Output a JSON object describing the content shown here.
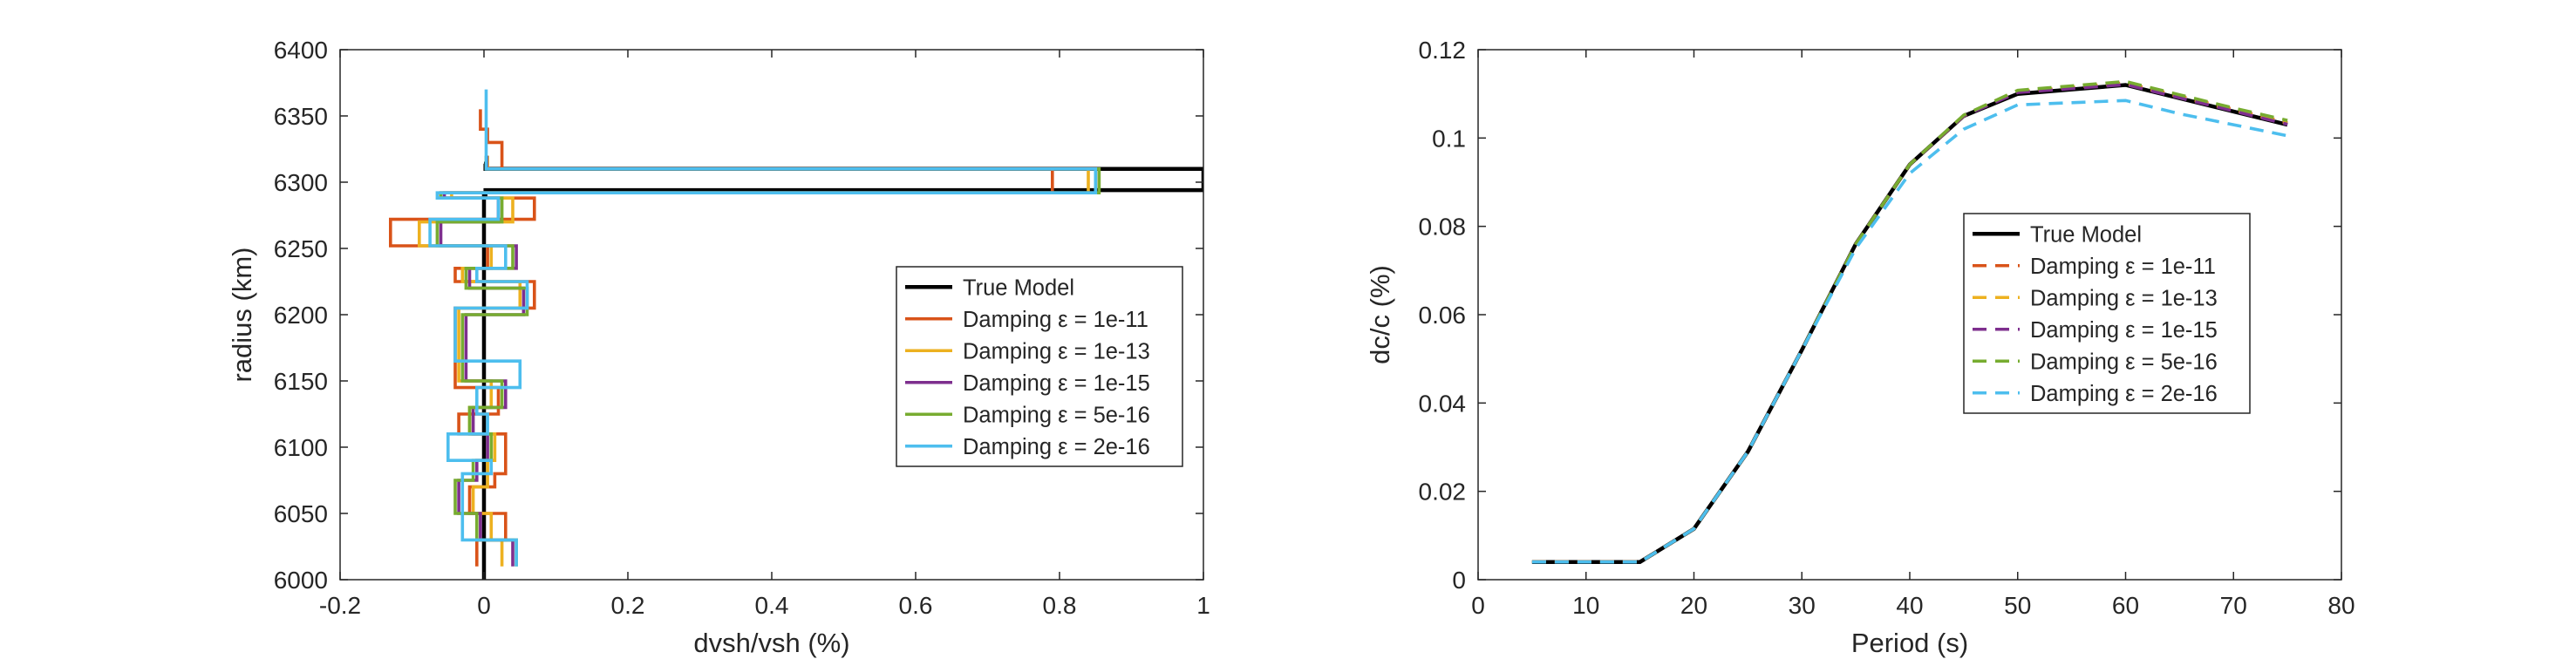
{
  "chart_data": [
    {
      "type": "line",
      "xlabel": "dvsh/vsh (%)",
      "ylabel": "radius (km)",
      "xlim": [
        -0.2,
        1
      ],
      "ylim": [
        6000,
        6400
      ],
      "xticks": [
        -0.2,
        0,
        0.2,
        0.4,
        0.6,
        0.8,
        1
      ],
      "xtick_labels": [
        "-0.2",
        "0",
        "0.2",
        "0.4",
        "0.6",
        "0.8",
        "1"
      ],
      "yticks": [
        6000,
        6050,
        6100,
        6150,
        6200,
        6250,
        6300,
        6350,
        6400
      ],
      "ytick_labels": [
        "6000",
        "6050",
        "6100",
        "6150",
        "6200",
        "6250",
        "6300",
        "6350",
        "6400"
      ],
      "grid": false,
      "legend_position": "right",
      "series": [
        {
          "name": "True Model",
          "color": "#000000",
          "dash": "solid",
          "x": [
            0,
            0,
            0.002,
            0.002,
            1.0,
            1.0,
            0.002,
            0.002,
            0
          ],
          "y": [
            6000,
            6290,
            6290,
            6294,
            6294,
            6310,
            6310,
            6314,
            6314
          ]
        },
        {
          "name": "Damping ε = 1e-11",
          "color": "#d95319",
          "dash": "solid",
          "x": [
            -0.01,
            -0.01,
            0.03,
            0.03,
            -0.02,
            -0.02,
            0.015,
            0.015,
            0.03,
            0.03,
            -0.035,
            -0.035,
            0.02,
            0.02,
            -0.04,
            -0.04,
            0.07,
            0.07,
            -0.04,
            -0.04,
            0.005,
            0.005,
            -0.13,
            -0.13,
            0.07,
            0.07,
            -0.06,
            -0.06,
            0.79,
            0.79,
            0.025,
            0.025,
            0.005,
            0.005,
            -0.005,
            -0.005
          ],
          "y": [
            6010,
            6030,
            6030,
            6050,
            6050,
            6070,
            6070,
            6080,
            6080,
            6110,
            6110,
            6125,
            6125,
            6145,
            6145,
            6205,
            6205,
            6225,
            6225,
            6235,
            6235,
            6252,
            6252,
            6272,
            6272,
            6288,
            6288,
            6292,
            6292,
            6310,
            6310,
            6330,
            6330,
            6340,
            6340,
            6355
          ]
        },
        {
          "name": "Damping ε = 1e-13",
          "color": "#edb120",
          "dash": "solid",
          "x": [
            0.025,
            0.025,
            0.01,
            0.01,
            -0.015,
            -0.015,
            0.005,
            0.005,
            0.015,
            0.015,
            -0.02,
            -0.02,
            0.01,
            0.01,
            -0.035,
            -0.035,
            0.05,
            0.05,
            -0.03,
            -0.03,
            0.01,
            0.01,
            -0.09,
            -0.09,
            0.04,
            0.04,
            -0.045,
            -0.045,
            0.84,
            0.84,
            0.005,
            0.005
          ],
          "y": [
            6010,
            6030,
            6030,
            6050,
            6050,
            6070,
            6070,
            6090,
            6090,
            6110,
            6110,
            6130,
            6130,
            6150,
            6150,
            6205,
            6205,
            6225,
            6225,
            6235,
            6235,
            6252,
            6252,
            6270,
            6270,
            6288,
            6288,
            6292,
            6292,
            6310,
            6310,
            6320
          ]
        },
        {
          "name": "Damping ε = 1e-15",
          "color": "#7e2f8e",
          "dash": "solid",
          "x": [
            0.04,
            0.04,
            -0.005,
            -0.005,
            -0.035,
            -0.035,
            -0.01,
            -0.01,
            0.005,
            0.005,
            -0.015,
            -0.015,
            0.03,
            0.03,
            -0.025,
            -0.025,
            0.055,
            0.055,
            -0.02,
            -0.02,
            0.045,
            0.045,
            -0.06,
            -0.06,
            0.02,
            0.02,
            -0.055,
            -0.055,
            0.85,
            0.85,
            0.004,
            0.004
          ],
          "y": [
            6010,
            6030,
            6030,
            6050,
            6050,
            6075,
            6075,
            6090,
            6090,
            6110,
            6110,
            6130,
            6130,
            6150,
            6150,
            6200,
            6200,
            6220,
            6220,
            6235,
            6235,
            6252,
            6252,
            6270,
            6270,
            6288,
            6288,
            6292,
            6292,
            6310,
            6310,
            6320
          ]
        },
        {
          "name": "Damping ε = 5e-16",
          "color": "#77ac30",
          "dash": "solid",
          "x": [
            0.045,
            0.045,
            -0.01,
            -0.01,
            -0.04,
            -0.04,
            -0.015,
            -0.015,
            0.01,
            0.01,
            -0.02,
            -0.02,
            0.025,
            0.025,
            -0.03,
            -0.03,
            0.06,
            0.06,
            -0.025,
            -0.025,
            0.04,
            0.04,
            -0.065,
            -0.065,
            0.025,
            0.025,
            -0.06,
            -0.06,
            0.855,
            0.855,
            0.003,
            0.003
          ],
          "y": [
            6010,
            6030,
            6030,
            6050,
            6050,
            6075,
            6075,
            6090,
            6090,
            6110,
            6110,
            6130,
            6130,
            6150,
            6150,
            6200,
            6200,
            6220,
            6220,
            6235,
            6235,
            6252,
            6252,
            6270,
            6270,
            6288,
            6288,
            6292,
            6292,
            6310,
            6310,
            6320
          ]
        },
        {
          "name": "Damping ε = 2e-16",
          "color": "#4dbeee",
          "dash": "solid",
          "x": [
            0.045,
            0.045,
            -0.03,
            -0.03,
            0.01,
            0.01,
            -0.05,
            -0.05,
            0.005,
            0.005,
            -0.01,
            -0.01,
            0.05,
            0.05,
            -0.04,
            -0.04,
            0.06,
            0.06,
            -0.01,
            -0.01,
            0.03,
            0.03,
            -0.075,
            -0.075,
            0.02,
            0.02,
            -0.065,
            -0.065,
            0.85,
            0.85,
            0.003,
            0.003
          ],
          "y": [
            6010,
            6030,
            6030,
            6080,
            6080,
            6090,
            6090,
            6110,
            6110,
            6125,
            6125,
            6145,
            6145,
            6165,
            6165,
            6205,
            6205,
            6225,
            6225,
            6235,
            6235,
            6252,
            6252,
            6272,
            6272,
            6288,
            6288,
            6292,
            6292,
            6310,
            6310,
            6370
          ]
        }
      ]
    },
    {
      "type": "line",
      "xlabel": "Period (s)",
      "ylabel": "dc/c (%)",
      "xlim": [
        0,
        80
      ],
      "ylim": [
        0,
        0.12
      ],
      "xticks": [
        0,
        10,
        20,
        30,
        40,
        50,
        60,
        70,
        80
      ],
      "xtick_labels": [
        "0",
        "10",
        "20",
        "30",
        "40",
        "50",
        "60",
        "70",
        "80"
      ],
      "yticks": [
        0,
        0.02,
        0.04,
        0.06,
        0.08,
        0.1,
        0.12
      ],
      "ytick_labels": [
        "0",
        "0.02",
        "0.04",
        "0.06",
        "0.08",
        "0.1",
        "0.12"
      ],
      "grid": false,
      "legend_position": "center-right",
      "x": [
        5,
        10,
        15,
        20,
        25,
        30,
        35,
        40,
        45,
        50,
        55,
        60,
        65,
        70,
        75
      ],
      "series": [
        {
          "name": "True Model",
          "color": "#000000",
          "dash": "solid",
          "values": [
            0.004,
            0.004,
            0.004,
            0.0115,
            0.029,
            0.052,
            0.076,
            0.094,
            0.105,
            0.11,
            0.111,
            0.112,
            0.109,
            0.106,
            0.103
          ]
        },
        {
          "name": "Damping ε = 1e-11",
          "color": "#d95319",
          "dash": "dashed",
          "values": [
            0.004,
            0.004,
            0.004,
            0.0115,
            0.029,
            0.052,
            0.076,
            0.094,
            0.105,
            0.1105,
            0.1115,
            0.1125,
            0.1095,
            0.1065,
            0.1035
          ]
        },
        {
          "name": "Damping ε = 1e-13",
          "color": "#edb120",
          "dash": "dashed",
          "values": [
            0.004,
            0.004,
            0.004,
            0.0115,
            0.029,
            0.052,
            0.076,
            0.094,
            0.105,
            0.1105,
            0.1115,
            0.1123,
            0.1093,
            0.1063,
            0.1033
          ]
        },
        {
          "name": "Damping ε = 1e-15",
          "color": "#7e2f8e",
          "dash": "dashed",
          "values": [
            0.004,
            0.004,
            0.004,
            0.0115,
            0.029,
            0.052,
            0.076,
            0.094,
            0.105,
            0.1103,
            0.1112,
            0.1121,
            0.1091,
            0.1061,
            0.1031
          ]
        },
        {
          "name": "Damping ε = 5e-16",
          "color": "#77ac30",
          "dash": "dashed",
          "values": [
            0.004,
            0.004,
            0.004,
            0.0115,
            0.029,
            0.052,
            0.076,
            0.094,
            0.1052,
            0.1108,
            0.1118,
            0.1128,
            0.1098,
            0.1068,
            0.104
          ]
        },
        {
          "name": "Damping ε = 2e-16",
          "color": "#4dbeee",
          "dash": "dashed",
          "values": [
            0.004,
            0.004,
            0.004,
            0.0115,
            0.029,
            0.052,
            0.075,
            0.092,
            0.102,
            0.1075,
            0.108,
            0.1085,
            0.1055,
            0.103,
            0.1005
          ]
        }
      ]
    }
  ]
}
